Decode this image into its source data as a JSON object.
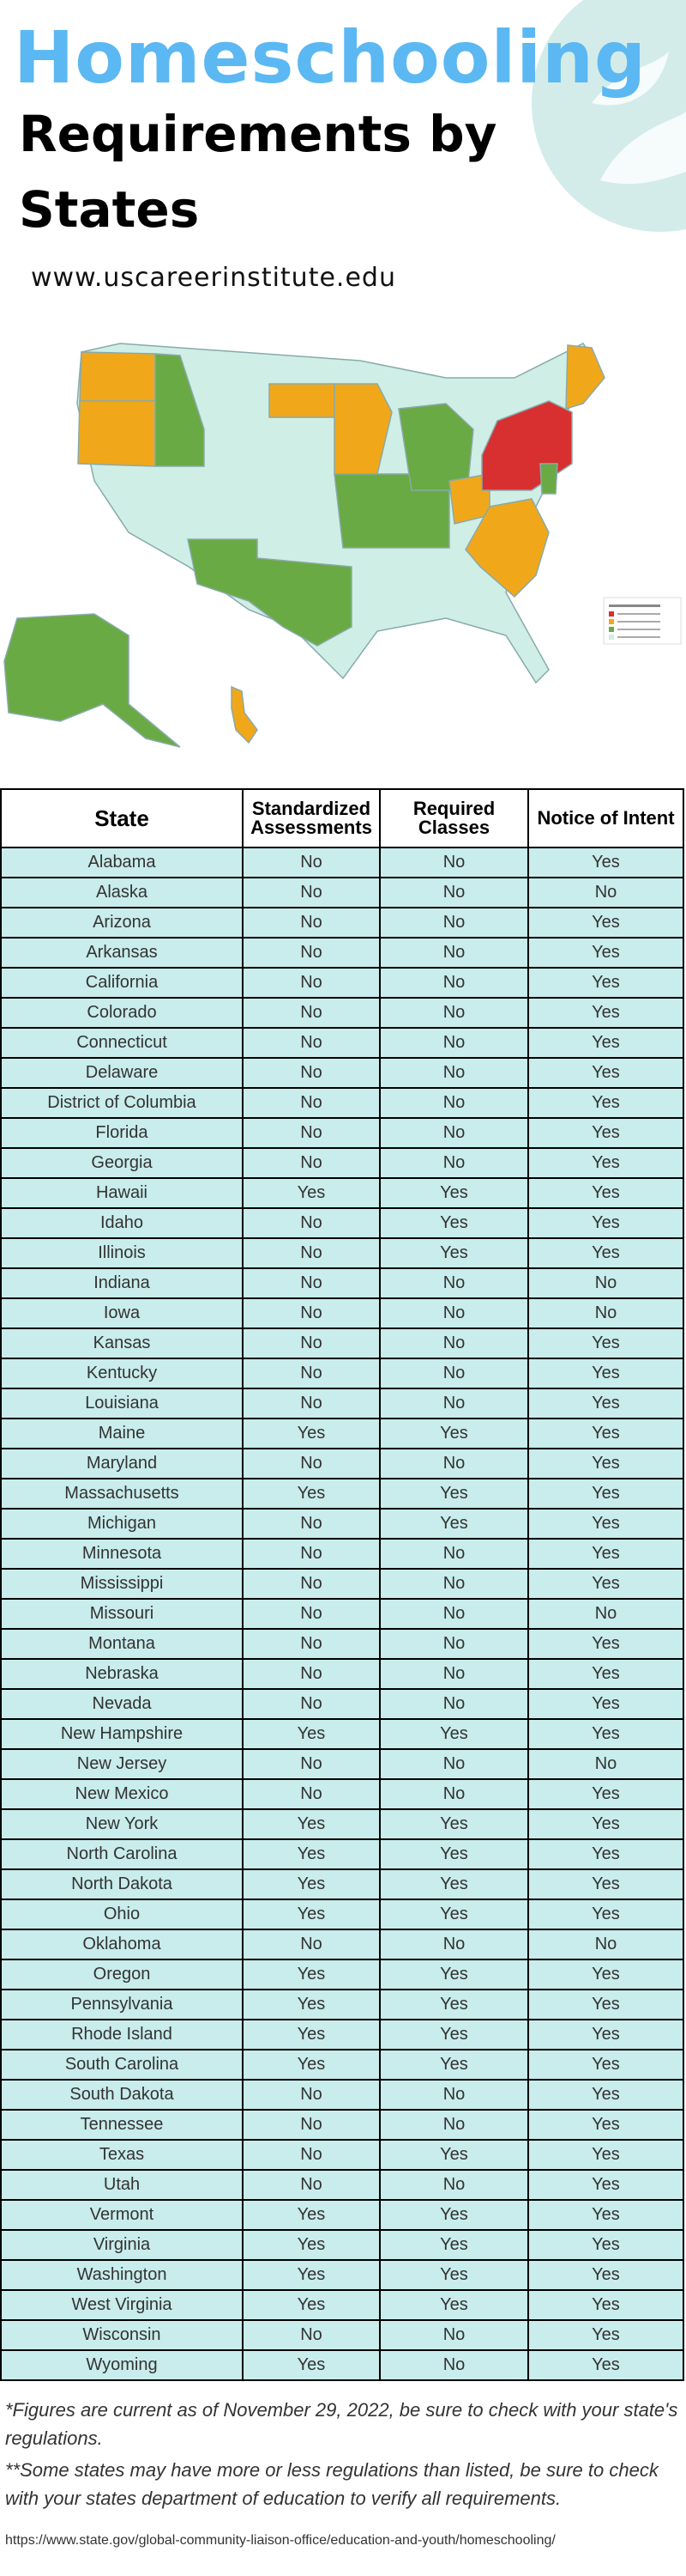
{
  "header": {
    "title": "Homeschooling",
    "subtitle": "Requirements by States",
    "website": "www.uscareerinstitute.edu"
  },
  "table": {
    "columns": [
      "State",
      "Standardized Assessments",
      "Required Classes",
      "Notice of Intent"
    ],
    "rows": [
      [
        "Alabama",
        "No",
        "No",
        "Yes"
      ],
      [
        "Alaska",
        "No",
        "No",
        "No"
      ],
      [
        "Arizona",
        "No",
        "No",
        "Yes"
      ],
      [
        "Arkansas",
        "No",
        "No",
        "Yes"
      ],
      [
        "California",
        "No",
        "No",
        "Yes"
      ],
      [
        "Colorado",
        "No",
        "No",
        "Yes"
      ],
      [
        "Connecticut",
        "No",
        "No",
        "Yes"
      ],
      [
        "Delaware",
        "No",
        "No",
        "Yes"
      ],
      [
        "District of Columbia",
        "No",
        "No",
        "Yes"
      ],
      [
        "Florida",
        "No",
        "No",
        "Yes"
      ],
      [
        "Georgia",
        "No",
        "No",
        "Yes"
      ],
      [
        "Hawaii",
        "Yes",
        "Yes",
        "Yes"
      ],
      [
        "Idaho",
        "No",
        "Yes",
        "Yes"
      ],
      [
        "Illinois",
        "No",
        "Yes",
        "Yes"
      ],
      [
        "Indiana",
        "No",
        "No",
        "No"
      ],
      [
        "Iowa",
        "No",
        "No",
        "No"
      ],
      [
        "Kansas",
        "No",
        "No",
        "Yes"
      ],
      [
        "Kentucky",
        "No",
        "No",
        "Yes"
      ],
      [
        "Louisiana",
        "No",
        "No",
        "Yes"
      ],
      [
        "Maine",
        "Yes",
        "Yes",
        "Yes"
      ],
      [
        "Maryland",
        "No",
        "No",
        "Yes"
      ],
      [
        "Massachusetts",
        "Yes",
        "Yes",
        "Yes"
      ],
      [
        "Michigan",
        "No",
        "Yes",
        "Yes"
      ],
      [
        "Minnesota",
        "No",
        "No",
        "Yes"
      ],
      [
        "Mississippi",
        "No",
        "No",
        "Yes"
      ],
      [
        "Missouri",
        "No",
        "No",
        "No"
      ],
      [
        "Montana",
        "No",
        "No",
        "Yes"
      ],
      [
        "Nebraska",
        "No",
        "No",
        "Yes"
      ],
      [
        "Nevada",
        "No",
        "No",
        "Yes"
      ],
      [
        "New Hampshire",
        "Yes",
        "Yes",
        "Yes"
      ],
      [
        "New Jersey",
        "No",
        "No",
        "No"
      ],
      [
        "New Mexico",
        "No",
        "No",
        "Yes"
      ],
      [
        "New York",
        "Yes",
        "Yes",
        "Yes"
      ],
      [
        "North Carolina",
        "Yes",
        "Yes",
        "Yes"
      ],
      [
        "North Dakota",
        "Yes",
        "Yes",
        "Yes"
      ],
      [
        "Ohio",
        "Yes",
        "Yes",
        "Yes"
      ],
      [
        "Oklahoma",
        "No",
        "No",
        "No"
      ],
      [
        "Oregon",
        "Yes",
        "Yes",
        "Yes"
      ],
      [
        "Pennsylvania",
        "Yes",
        "Yes",
        "Yes"
      ],
      [
        "Rhode Island",
        "Yes",
        "Yes",
        "Yes"
      ],
      [
        "South Carolina",
        "Yes",
        "Yes",
        "Yes"
      ],
      [
        "South Dakota",
        "No",
        "No",
        "Yes"
      ],
      [
        "Tennessee",
        "No",
        "No",
        "Yes"
      ],
      [
        "Texas",
        "No",
        "Yes",
        "Yes"
      ],
      [
        "Utah",
        "No",
        "No",
        "Yes"
      ],
      [
        "Vermont",
        "Yes",
        "Yes",
        "Yes"
      ],
      [
        "Virginia",
        "Yes",
        "Yes",
        "Yes"
      ],
      [
        "Washington",
        "Yes",
        "Yes",
        "Yes"
      ],
      [
        "West Virginia",
        "Yes",
        "Yes",
        "Yes"
      ],
      [
        "Wisconsin",
        "No",
        "No",
        "Yes"
      ],
      [
        "Wyoming",
        "Yes",
        "No",
        "Yes"
      ]
    ]
  },
  "footnotes": [
    "*Figures are current as of November 29, 2022, be sure to check with your state's regulations.",
    "**Some states may have more or less regulations than listed, be sure to check with your states department of education to verify all requirements."
  ],
  "source": "https://www.state.gov/global-community-liaison-office/education-and-youth/homeschooling/"
}
